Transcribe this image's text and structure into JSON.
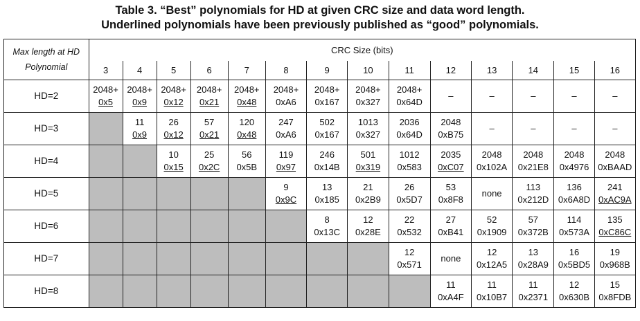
{
  "caption": {
    "line1": "Table 3.  “Best” polynomials for HD at given CRC size and data word length.",
    "line2": "Underlined polynomials have been previously published as “good” polynomials."
  },
  "table": {
    "corner_line1": "Max length at HD",
    "corner_line2": "Polynomial",
    "crc_size_label": "CRC Size (bits)",
    "bits": [
      "3",
      "4",
      "5",
      "6",
      "7",
      "8",
      "9",
      "10",
      "11",
      "12",
      "13",
      "14",
      "15",
      "16"
    ],
    "rows": [
      {
        "label": "HD=2",
        "cells": [
          {
            "v": "2048+",
            "p": "0x5",
            "u": true
          },
          {
            "v": "2048+",
            "p": "0x9",
            "u": true
          },
          {
            "v": "2048+",
            "p": "0x12",
            "u": true
          },
          {
            "v": "2048+",
            "p": "0x21",
            "u": true
          },
          {
            "v": "2048+",
            "p": "0x48",
            "u": true
          },
          {
            "v": "2048+",
            "p": "0xA6",
            "u": false
          },
          {
            "v": "2048+",
            "p": "0x167",
            "u": false
          },
          {
            "v": "2048+",
            "p": "0x327",
            "u": false
          },
          {
            "v": "2048+",
            "p": "0x64D",
            "u": false
          },
          {
            "t": "–"
          },
          {
            "t": "–"
          },
          {
            "t": "–"
          },
          {
            "t": "–"
          },
          {
            "t": "–"
          }
        ]
      },
      {
        "label": "HD=3",
        "cells": [
          {
            "na": true
          },
          {
            "v": "11",
            "p": "0x9",
            "u": true
          },
          {
            "v": "26",
            "p": "0x12",
            "u": true
          },
          {
            "v": "57",
            "p": "0x21",
            "u": true
          },
          {
            "v": "120",
            "p": "0x48",
            "u": true
          },
          {
            "v": "247",
            "p": "0xA6",
            "u": false
          },
          {
            "v": "502",
            "p": "0x167",
            "u": false
          },
          {
            "v": "1013",
            "p": "0x327",
            "u": false
          },
          {
            "v": "2036",
            "p": "0x64D",
            "u": false
          },
          {
            "v": "2048",
            "p": "0xB75",
            "u": false
          },
          {
            "t": "–"
          },
          {
            "t": "–"
          },
          {
            "t": "–"
          },
          {
            "t": "–"
          }
        ]
      },
      {
        "label": "HD=4",
        "cells": [
          {
            "na": true
          },
          {
            "na": true
          },
          {
            "v": "10",
            "p": "0x15",
            "u": true
          },
          {
            "v": "25",
            "p": "0x2C",
            "u": true
          },
          {
            "v": "56",
            "p": "0x5B",
            "u": false
          },
          {
            "v": "119",
            "p": "0x97",
            "u": true
          },
          {
            "v": "246",
            "p": "0x14B",
            "u": false
          },
          {
            "v": "501",
            "p": "0x319",
            "u": true
          },
          {
            "v": "1012",
            "p": "0x583",
            "u": false
          },
          {
            "v": "2035",
            "p": "0xC07",
            "u": true
          },
          {
            "v": "2048",
            "p": "0x102A",
            "u": false
          },
          {
            "v": "2048",
            "p": "0x21E8",
            "u": false
          },
          {
            "v": "2048",
            "p": "0x4976",
            "u": false
          },
          {
            "v": "2048",
            "p": "0xBAAD",
            "u": false
          }
        ]
      },
      {
        "label": "HD=5",
        "cells": [
          {
            "na": true
          },
          {
            "na": true
          },
          {
            "na": true
          },
          {
            "na": true
          },
          {
            "na": true
          },
          {
            "v": "9",
            "p": "0x9C",
            "u": true
          },
          {
            "v": "13",
            "p": "0x185",
            "u": false
          },
          {
            "v": "21",
            "p": "0x2B9",
            "u": false
          },
          {
            "v": "26",
            "p": "0x5D7",
            "u": false
          },
          {
            "v": "53",
            "p": "0x8F8",
            "u": false
          },
          {
            "t": "none"
          },
          {
            "v": "113",
            "p": "0x212D",
            "u": false
          },
          {
            "v": "136",
            "p": "0x6A8D",
            "u": false
          },
          {
            "v": "241",
            "p": "0xAC9A",
            "u": true
          }
        ]
      },
      {
        "label": "HD=6",
        "cells": [
          {
            "na": true
          },
          {
            "na": true
          },
          {
            "na": true
          },
          {
            "na": true
          },
          {
            "na": true
          },
          {
            "na": true
          },
          {
            "v": "8",
            "p": "0x13C",
            "u": false
          },
          {
            "v": "12",
            "p": "0x28E",
            "u": false
          },
          {
            "v": "22",
            "p": "0x532",
            "u": false
          },
          {
            "v": "27",
            "p": "0xB41",
            "u": false
          },
          {
            "v": "52",
            "p": "0x1909",
            "u": false
          },
          {
            "v": "57",
            "p": "0x372B",
            "u": false
          },
          {
            "v": "114",
            "p": "0x573A",
            "u": false
          },
          {
            "v": "135",
            "p": "0xC86C",
            "u": true
          }
        ]
      },
      {
        "label": "HD=7",
        "cells": [
          {
            "na": true
          },
          {
            "na": true
          },
          {
            "na": true
          },
          {
            "na": true
          },
          {
            "na": true
          },
          {
            "na": true
          },
          {
            "na": true
          },
          {
            "na": true
          },
          {
            "v": "12",
            "p": "0x571",
            "u": false
          },
          {
            "t": "none"
          },
          {
            "v": "12",
            "p": "0x12A5",
            "u": false
          },
          {
            "v": "13",
            "p": "0x28A9",
            "u": false
          },
          {
            "v": "16",
            "p": "0x5BD5",
            "u": false
          },
          {
            "v": "19",
            "p": "0x968B",
            "u": false
          }
        ]
      },
      {
        "label": "HD=8",
        "cells": [
          {
            "na": true
          },
          {
            "na": true
          },
          {
            "na": true
          },
          {
            "na": true
          },
          {
            "na": true
          },
          {
            "na": true
          },
          {
            "na": true
          },
          {
            "na": true
          },
          {
            "na": true
          },
          {
            "v": "11",
            "p": "0xA4F",
            "u": false
          },
          {
            "v": "11",
            "p": "0x10B7",
            "u": false
          },
          {
            "v": "11",
            "p": "0x2371",
            "u": false
          },
          {
            "v": "12",
            "p": "0x630B",
            "u": false
          },
          {
            "v": "15",
            "p": "0x8FDB",
            "u": false
          }
        ]
      }
    ]
  }
}
